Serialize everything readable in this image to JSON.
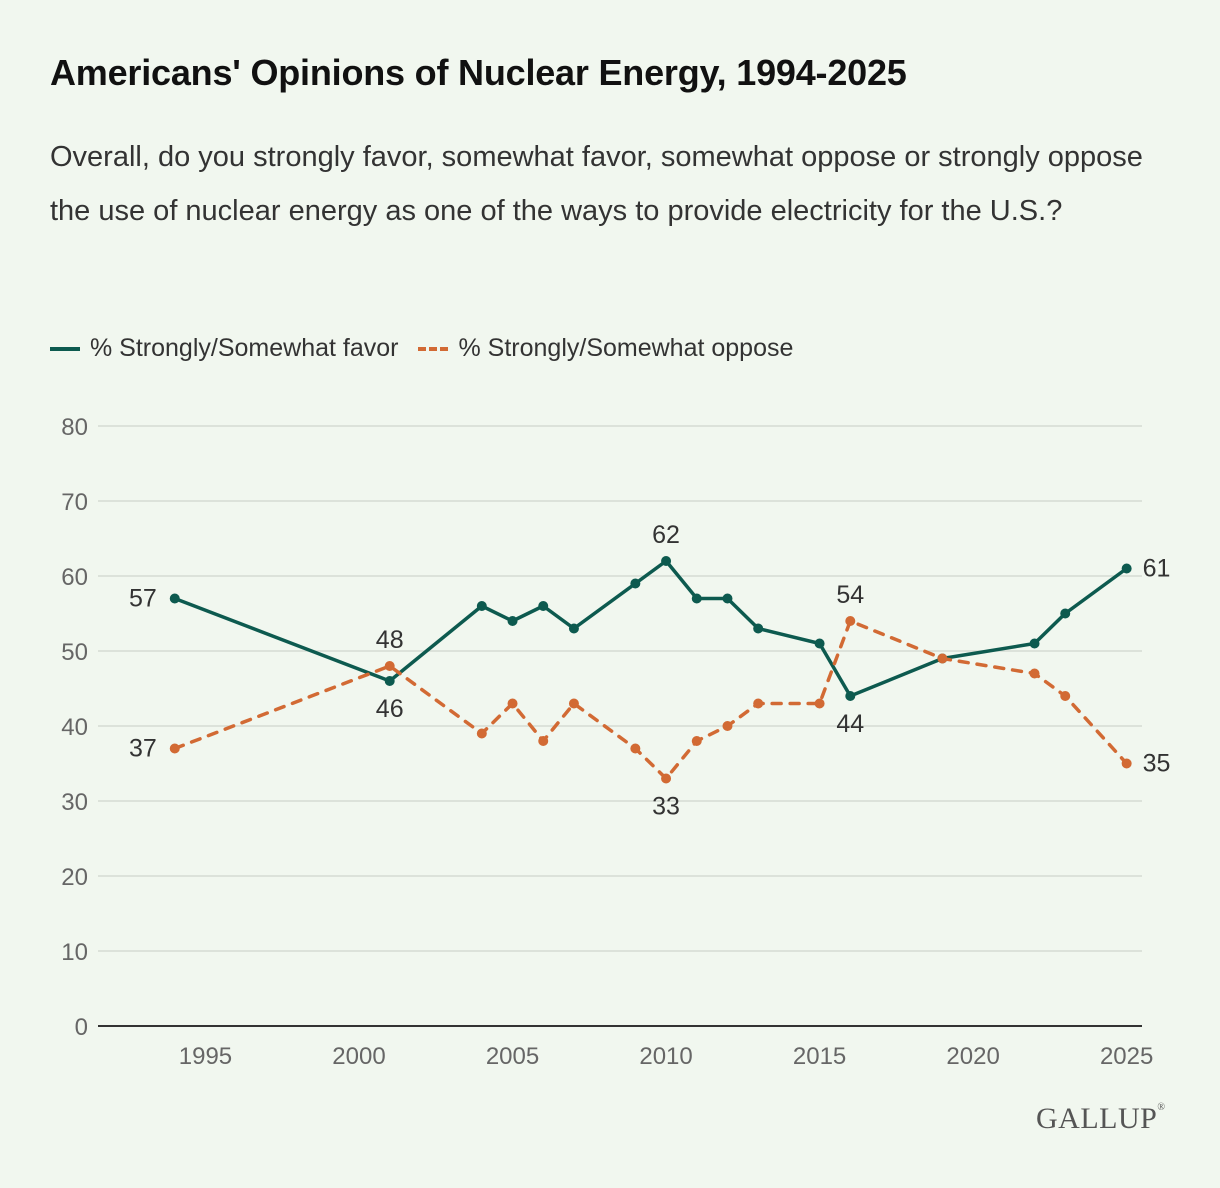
{
  "title": "Americans' Opinions of Nuclear Energy, 1994-2025",
  "subtitle": "Overall, do you strongly favor, somewhat favor, somewhat oppose or strongly oppose the use of nuclear energy as one of the ways to provide electricity for the U.S.?",
  "brand": "GALLUP",
  "brand_mark": "®",
  "colors": {
    "favor": "#0d5a4f",
    "oppose": "#d26a34",
    "background": "#f1f7ef"
  },
  "chart_data": {
    "type": "line",
    "xlim": [
      1991.5,
      2025.5
    ],
    "ylim": [
      0,
      80
    ],
    "y_ticks": [
      0,
      10,
      20,
      30,
      40,
      50,
      60,
      70,
      80
    ],
    "x_ticks": [
      1995,
      2000,
      2005,
      2010,
      2015,
      2020,
      2025
    ],
    "grid": true,
    "legend_position": "top-left",
    "series": [
      {
        "name": "% Strongly/Somewhat favor",
        "style": "solid",
        "x": [
          1994,
          2001,
          2004,
          2005,
          2006,
          2007,
          2009,
          2010,
          2011,
          2012,
          2013,
          2015,
          2016,
          2019,
          2022,
          2023,
          2025
        ],
        "values": [
          57,
          46,
          56,
          54,
          56,
          53,
          59,
          62,
          57,
          57,
          53,
          51,
          44,
          49,
          51,
          55,
          61
        ],
        "labeled_points": [
          {
            "x": 1994,
            "value": 57,
            "pos": "left"
          },
          {
            "x": 2001,
            "value": 46,
            "pos": "below"
          },
          {
            "x": 2010,
            "value": 62,
            "pos": "above"
          },
          {
            "x": 2016,
            "value": 44,
            "pos": "below"
          },
          {
            "x": 2025,
            "value": 61,
            "pos": "right"
          }
        ]
      },
      {
        "name": "% Strongly/Somewhat oppose",
        "style": "dashed",
        "x": [
          1994,
          2001,
          2004,
          2005,
          2006,
          2007,
          2009,
          2010,
          2011,
          2012,
          2013,
          2015,
          2016,
          2019,
          2022,
          2023,
          2025
        ],
        "values": [
          37,
          48,
          39,
          43,
          38,
          43,
          37,
          33,
          38,
          40,
          43,
          43,
          54,
          49,
          47,
          44,
          35
        ],
        "labeled_points": [
          {
            "x": 1994,
            "value": 37,
            "pos": "left"
          },
          {
            "x": 2001,
            "value": 48,
            "pos": "above"
          },
          {
            "x": 2010,
            "value": 33,
            "pos": "below"
          },
          {
            "x": 2016,
            "value": 54,
            "pos": "above"
          },
          {
            "x": 2025,
            "value": 35,
            "pos": "right"
          }
        ]
      }
    ]
  }
}
